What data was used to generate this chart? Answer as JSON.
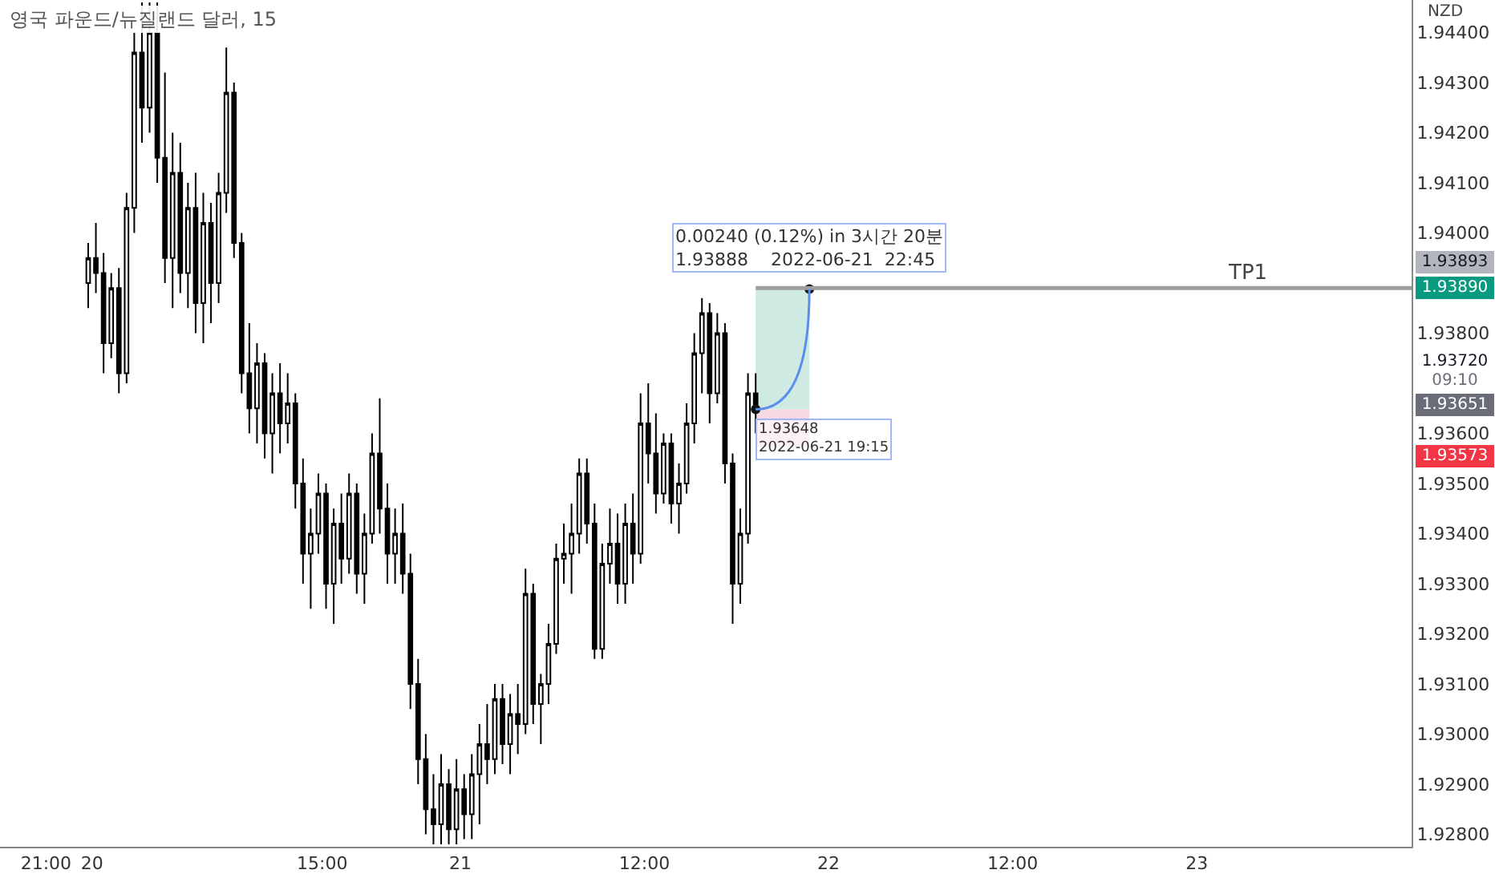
{
  "chart_data": {
    "type": "candlestick",
    "title": "영국 파운드/뉴질랜드 달러, 15",
    "ylabel": "NZD",
    "color": "#000000",
    "x": [
      "2022-06-19T23:45",
      "2022-06-20T00:15",
      "2022-06-20T00:45",
      "2022-06-20T01:15",
      "2022-06-20T01:45",
      "2022-06-20T02:15",
      "2022-06-20T02:45",
      "2022-06-20T03:15",
      "2022-06-20T03:45",
      "2022-06-20T04:15",
      "2022-06-20T04:45",
      "2022-06-20T05:15",
      "2022-06-20T05:45",
      "2022-06-20T06:15",
      "2022-06-20T06:45",
      "2022-06-20T07:15",
      "2022-06-20T07:45",
      "2022-06-20T08:15",
      "2022-06-20T08:45",
      "2022-06-20T09:15",
      "2022-06-20T09:45",
      "2022-06-20T10:15",
      "2022-06-20T10:45",
      "2022-06-20T11:15",
      "2022-06-20T11:45",
      "2022-06-20T12:15",
      "2022-06-20T12:45",
      "2022-06-20T13:15",
      "2022-06-20T13:45",
      "2022-06-20T14:15",
      "2022-06-20T14:45",
      "2022-06-20T15:15",
      "2022-06-20T15:45",
      "2022-06-20T16:15",
      "2022-06-20T16:45",
      "2022-06-20T17:15",
      "2022-06-20T17:45",
      "2022-06-20T18:15",
      "2022-06-20T18:45",
      "2022-06-20T19:15",
      "2022-06-20T19:45",
      "2022-06-20T20:15",
      "2022-06-20T20:45",
      "2022-06-20T21:15",
      "2022-06-20T21:45",
      "2022-06-20T22:15",
      "2022-06-20T22:45",
      "2022-06-20T23:15",
      "2022-06-20T23:45",
      "2022-06-21T00:15",
      "2022-06-21T00:45",
      "2022-06-21T01:15",
      "2022-06-21T01:45",
      "2022-06-21T02:15",
      "2022-06-21T02:45",
      "2022-06-21T03:15",
      "2022-06-21T03:45",
      "2022-06-21T04:15",
      "2022-06-21T04:45",
      "2022-06-21T05:15",
      "2022-06-21T05:45",
      "2022-06-21T06:15",
      "2022-06-21T06:45",
      "2022-06-21T07:15",
      "2022-06-21T07:45",
      "2022-06-21T08:15",
      "2022-06-21T08:45",
      "2022-06-21T09:15",
      "2022-06-21T09:45",
      "2022-06-21T10:15",
      "2022-06-21T10:45",
      "2022-06-21T11:15",
      "2022-06-21T11:45",
      "2022-06-21T12:15",
      "2022-06-21T12:45",
      "2022-06-21T13:15",
      "2022-06-21T13:45",
      "2022-06-21T14:15",
      "2022-06-21T14:45",
      "2022-06-21T15:15",
      "2022-06-21T15:45",
      "2022-06-21T16:15",
      "2022-06-21T16:45",
      "2022-06-21T17:15",
      "2022-06-21T17:45",
      "2022-06-21T18:15",
      "2022-06-21T18:45",
      "2022-06-21T19:15"
    ],
    "ohlc": [
      [
        1.939,
        1.9398,
        1.9385,
        1.9395
      ],
      [
        1.9395,
        1.9402,
        1.9388,
        1.9392
      ],
      [
        1.9392,
        1.9396,
        1.9372,
        1.9378
      ],
      [
        1.9378,
        1.9392,
        1.9375,
        1.9389
      ],
      [
        1.9389,
        1.9393,
        1.9368,
        1.9372
      ],
      [
        1.9372,
        1.9408,
        1.937,
        1.9405
      ],
      [
        1.9405,
        1.944,
        1.94,
        1.9436
      ],
      [
        1.9436,
        1.9446,
        1.9418,
        1.9425
      ],
      [
        1.9425,
        1.9446,
        1.942,
        1.944
      ],
      [
        1.944,
        1.9446,
        1.941,
        1.9415
      ],
      [
        1.9415,
        1.9432,
        1.939,
        1.9395
      ],
      [
        1.9395,
        1.942,
        1.9385,
        1.9412
      ],
      [
        1.9412,
        1.9418,
        1.9388,
        1.9392
      ],
      [
        1.9392,
        1.941,
        1.9385,
        1.9405
      ],
      [
        1.9405,
        1.9412,
        1.938,
        1.9386
      ],
      [
        1.9386,
        1.9408,
        1.9378,
        1.9402
      ],
      [
        1.9402,
        1.9406,
        1.9382,
        1.939
      ],
      [
        1.939,
        1.9412,
        1.9386,
        1.9408
      ],
      [
        1.9408,
        1.9437,
        1.9404,
        1.9428
      ],
      [
        1.9428,
        1.943,
        1.9395,
        1.9398
      ],
      [
        1.9398,
        1.94,
        1.9368,
        1.9372
      ],
      [
        1.9372,
        1.9382,
        1.936,
        1.9365
      ],
      [
        1.9365,
        1.9378,
        1.9358,
        1.9374
      ],
      [
        1.9374,
        1.9376,
        1.9355,
        1.936
      ],
      [
        1.936,
        1.9372,
        1.9352,
        1.9368
      ],
      [
        1.9368,
        1.9374,
        1.9356,
        1.9362
      ],
      [
        1.9362,
        1.9372,
        1.9358,
        1.9366
      ],
      [
        1.9366,
        1.9368,
        1.9345,
        1.935
      ],
      [
        1.935,
        1.9355,
        1.933,
        1.9336
      ],
      [
        1.9336,
        1.9345,
        1.9325,
        1.934
      ],
      [
        1.934,
        1.9352,
        1.9336,
        1.9348
      ],
      [
        1.9348,
        1.935,
        1.9325,
        1.933
      ],
      [
        1.933,
        1.9345,
        1.9322,
        1.9342
      ],
      [
        1.9342,
        1.9348,
        1.933,
        1.9335
      ],
      [
        1.9335,
        1.9352,
        1.9332,
        1.9348
      ],
      [
        1.9348,
        1.935,
        1.9328,
        1.9332
      ],
      [
        1.9332,
        1.9344,
        1.9326,
        1.934
      ],
      [
        1.934,
        1.936,
        1.9338,
        1.9356
      ],
      [
        1.9356,
        1.9367,
        1.934,
        1.9345
      ],
      [
        1.9345,
        1.935,
        1.933,
        1.9336
      ],
      [
        1.9336,
        1.9345,
        1.933,
        1.934
      ],
      [
        1.934,
        1.9346,
        1.9328,
        1.9332
      ],
      [
        1.9332,
        1.9336,
        1.9305,
        1.931
      ],
      [
        1.931,
        1.9315,
        1.929,
        1.9295
      ],
      [
        1.9295,
        1.93,
        1.928,
        1.9285
      ],
      [
        1.9285,
        1.9292,
        1.9278,
        1.9282
      ],
      [
        1.9282,
        1.9296,
        1.9278,
        1.929
      ],
      [
        1.929,
        1.9293,
        1.9278,
        1.9281
      ],
      [
        1.9281,
        1.9295,
        1.9278,
        1.9289
      ],
      [
        1.9289,
        1.9292,
        1.9279,
        1.9284
      ],
      [
        1.9284,
        1.9296,
        1.9279,
        1.9292
      ],
      [
        1.9292,
        1.9302,
        1.9282,
        1.9298
      ],
      [
        1.9298,
        1.9306,
        1.929,
        1.9295
      ],
      [
        1.9295,
        1.931,
        1.9292,
        1.9307
      ],
      [
        1.9307,
        1.931,
        1.9294,
        1.9298
      ],
      [
        1.9298,
        1.9308,
        1.9292,
        1.9304
      ],
      [
        1.9304,
        1.931,
        1.9296,
        1.9302
      ],
      [
        1.9302,
        1.9333,
        1.93,
        1.9328
      ],
      [
        1.9328,
        1.933,
        1.9302,
        1.9306
      ],
      [
        1.9306,
        1.9312,
        1.9298,
        1.931
      ],
      [
        1.931,
        1.9322,
        1.9306,
        1.9318
      ],
      [
        1.9318,
        1.9338,
        1.9316,
        1.9335
      ],
      [
        1.9335,
        1.9342,
        1.933,
        1.9336
      ],
      [
        1.9336,
        1.9346,
        1.9328,
        1.934
      ],
      [
        1.934,
        1.9355,
        1.9336,
        1.9352
      ],
      [
        1.9352,
        1.9355,
        1.9338,
        1.9342
      ],
      [
        1.9342,
        1.9346,
        1.9315,
        1.9317
      ],
      [
        1.9317,
        1.9338,
        1.9315,
        1.9334
      ],
      [
        1.9334,
        1.9345,
        1.933,
        1.9338
      ],
      [
        1.9338,
        1.9344,
        1.9326,
        1.933
      ],
      [
        1.933,
        1.9346,
        1.9326,
        1.9342
      ],
      [
        1.9342,
        1.9348,
        1.933,
        1.9336
      ],
      [
        1.9336,
        1.9368,
        1.9334,
        1.9362
      ],
      [
        1.9362,
        1.937,
        1.935,
        1.9356
      ],
      [
        1.9356,
        1.9364,
        1.9344,
        1.9348
      ],
      [
        1.9348,
        1.936,
        1.9346,
        1.9358
      ],
      [
        1.9358,
        1.936,
        1.9342,
        1.9346
      ],
      [
        1.9346,
        1.9354,
        1.934,
        1.935
      ],
      [
        1.935,
        1.9366,
        1.9348,
        1.9362
      ],
      [
        1.9362,
        1.938,
        1.9358,
        1.9376
      ],
      [
        1.9376,
        1.9387,
        1.9368,
        1.9384
      ],
      [
        1.9384,
        1.9386,
        1.9362,
        1.9368
      ],
      [
        1.9368,
        1.9384,
        1.9366,
        1.938
      ],
      [
        1.938,
        1.9382,
        1.935,
        1.9354
      ],
      [
        1.9354,
        1.9356,
        1.9322,
        1.933
      ],
      [
        1.933,
        1.9345,
        1.9326,
        1.934
      ],
      [
        1.934,
        1.9372,
        1.9338,
        1.9368
      ],
      [
        1.9368,
        1.9372,
        1.936,
        1.9365
      ]
    ],
    "xlim": [
      "2022-06-19T18:00",
      "2022-06-23T14:00"
    ],
    "xticks": [
      {
        "value": "2022-06-19T21:00",
        "label": "21:00"
      },
      {
        "value": "2022-06-20",
        "label": "20"
      },
      {
        "value": "2022-06-20T15:00",
        "label": "15:00"
      },
      {
        "value": "2022-06-21",
        "label": "21"
      },
      {
        "value": "2022-06-21T12:00",
        "label": "12:00"
      },
      {
        "value": "2022-06-22",
        "label": "22"
      },
      {
        "value": "2022-06-22T12:00",
        "label": "12:00"
      },
      {
        "value": "2022-06-23",
        "label": "23"
      }
    ],
    "ylim": [
      1.92775,
      1.94465
    ],
    "yticks": [
      {
        "value": 1.928,
        "label": "1.92800"
      },
      {
        "value": 1.929,
        "label": "1.92900"
      },
      {
        "value": 1.93,
        "label": "1.93000"
      },
      {
        "value": 1.931,
        "label": "1.93100"
      },
      {
        "value": 1.932,
        "label": "1.93200"
      },
      {
        "value": 1.933,
        "label": "1.93300"
      },
      {
        "value": 1.934,
        "label": "1.93400"
      },
      {
        "value": 1.935,
        "label": "1.93500"
      },
      {
        "value": 1.936,
        "label": "1.93600"
      },
      {
        "value": 1.938,
        "label": "1.93800"
      },
      {
        "value": 1.94,
        "label": "1.94000"
      },
      {
        "value": 1.941,
        "label": "1.94100"
      },
      {
        "value": 1.942,
        "label": "1.94200"
      },
      {
        "value": 1.943,
        "label": "1.94300"
      },
      {
        "value": 1.944,
        "label": "1.94400"
      }
    ],
    "ref_lines": [
      {
        "axis": "y",
        "value": 1.9389,
        "label": "TP1",
        "color": "#9e9e9e"
      }
    ],
    "series": [
      {
        "type": "bar",
        "x": [
          "2022-06-21T21:00"
        ],
        "base": [
          1.93648
        ],
        "values": [
          0.00242
        ],
        "color": "#cfeae3"
      },
      {
        "type": "bar",
        "x": [
          "2022-06-21T21:00"
        ],
        "base": [
          1.93573
        ],
        "values": [
          0.00075
        ],
        "color": "#f6d9e0"
      }
    ],
    "annotations": [
      {
        "text": "0.00240 (0.12%) in 3시간 20분\n1.93888    2022-06-21  22:45",
        "x": "2022-06-21T22:45",
        "y": 1.93888
      },
      {
        "text": "1.93648\n2022-06-21 19:15",
        "x": "2022-06-21T19:15",
        "y": 1.93648
      },
      "1.93893",
      "1.93890",
      "1.93720",
      "09:10",
      "1.93651",
      "1.93573"
    ],
    "legend": false
  }
}
